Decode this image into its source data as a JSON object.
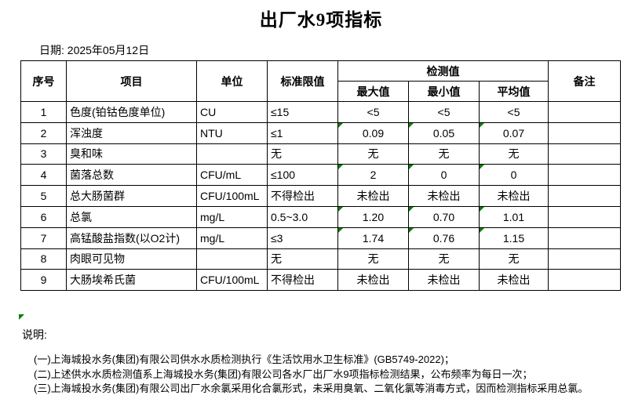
{
  "title": "出厂水9项指标",
  "date": "日期: 2025年05月12日",
  "colors": {
    "marker_green": "#008000",
    "border": "#000000",
    "background": "#ffffff"
  },
  "table": {
    "headers": {
      "no": "序号",
      "item": "项目",
      "unit": "单位",
      "limit": "标准限值",
      "detection_group": "检测值",
      "max": "最大值",
      "min": "最小值",
      "avg": "平均值",
      "remark": "备注"
    },
    "rows": [
      {
        "no": "1",
        "item": "色度(铂钴色度单位)",
        "unit": "CU",
        "limit": "≤15",
        "max": "<5",
        "min": "<5",
        "avg": "<5",
        "remark": "",
        "marked": false
      },
      {
        "no": "2",
        "item": "浑浊度",
        "unit": "NTU",
        "limit": "≤1",
        "max": "0.09",
        "min": "0.05",
        "avg": "0.07",
        "remark": "",
        "marked": true
      },
      {
        "no": "3",
        "item": "臭和味",
        "unit": "",
        "limit": "无",
        "max": "无",
        "min": "无",
        "avg": "无",
        "remark": "",
        "marked": false
      },
      {
        "no": "4",
        "item": "菌落总数",
        "unit": "CFU/mL",
        "limit": "≤100",
        "max": "2",
        "min": "0",
        "avg": "0",
        "remark": "",
        "marked": true
      },
      {
        "no": "5",
        "item": "总大肠菌群",
        "unit": "CFU/100mL",
        "limit": "不得检出",
        "max": "未检出",
        "min": "未检出",
        "avg": "未检出",
        "remark": "",
        "marked": false
      },
      {
        "no": "6",
        "item": "总氯",
        "unit": "mg/L",
        "limit": "0.5~3.0",
        "max": "1.20",
        "min": "0.70",
        "avg": "1.01",
        "remark": "",
        "marked": true
      },
      {
        "no": "7",
        "item": "高锰酸盐指数(以O2计)",
        "unit": "mg/L",
        "limit": "≤3",
        "max": "1.74",
        "min": "0.76",
        "avg": "1.15",
        "remark": "",
        "marked": true
      },
      {
        "no": "8",
        "item": "肉眼可见物",
        "unit": "",
        "limit": "无",
        "max": "无",
        "min": "无",
        "avg": "无",
        "remark": "",
        "marked": false
      },
      {
        "no": "9",
        "item": "大肠埃希氏菌",
        "unit": "CFU/100mL",
        "limit": "不得检出",
        "max": "未检出",
        "min": "未检出",
        "avg": "未检出",
        "remark": "",
        "marked": false
      }
    ]
  },
  "notes": {
    "label": "说明:",
    "items": [
      "(一)上海城投水务(集团)有限公司供水水质检测执行《生活饮用水卫生标准》(GB5749-2022)；",
      "(二)上述供水水质检测值系上海城投水务(集团)有限公司各水厂出厂水9项指标检测结果，公布频率为每日一次；",
      "(三)上海城投水务(集团)有限公司出厂水余氯采用化合氯形式，未采用臭氧、二氧化氯等消毒方式，因而检测指标采用总氯。"
    ]
  }
}
